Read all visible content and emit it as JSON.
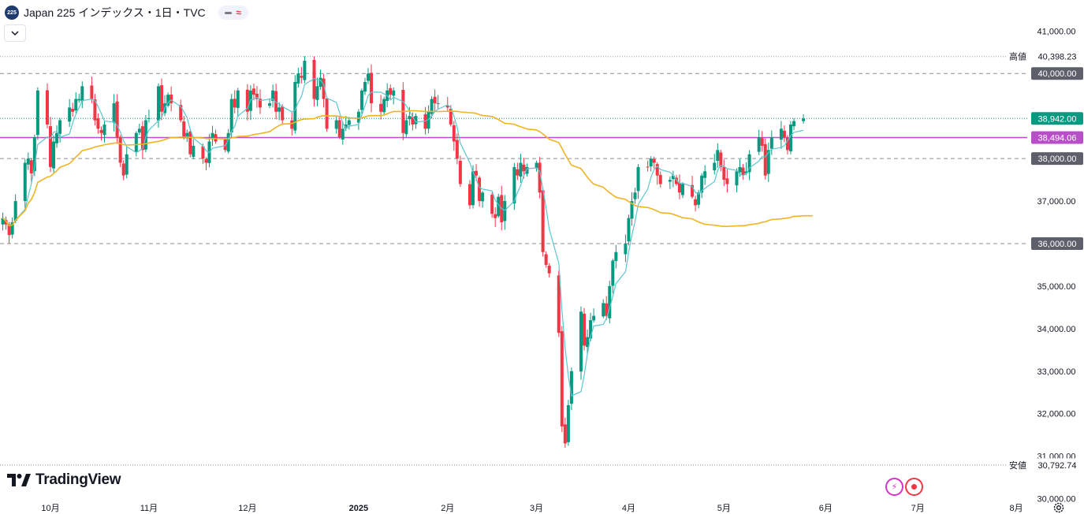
{
  "header": {
    "symbol_badge": "225",
    "title": "Japan 225 インデックス・1日・TVC"
  },
  "branding": {
    "logo_text": "TradingView"
  },
  "icons": [
    "collapse-chevron-icon",
    "indicator-pill-icon",
    "lightning-alert-icon",
    "record-icon",
    "gear-icon",
    "tradingview-logo-icon"
  ],
  "colors": {
    "up": "#089981",
    "down": "#f23645",
    "ma_short": "#5bc6cf",
    "ma_long": "#f0b323",
    "hline": "#b84fc9",
    "tag_dark": "#5d606b",
    "tag_last": "#089981"
  },
  "chart_data": {
    "type": "candlestick",
    "title": "Japan 225 インデックス・1日・TVC",
    "y_range": [
      29900,
      41450
    ],
    "y_ticks": [
      {
        "value": 41000,
        "label": "41,000.00"
      },
      {
        "value": 37000,
        "label": "37,000.00"
      },
      {
        "value": 35000,
        "label": "35,000.00"
      },
      {
        "value": 34000,
        "label": "34,000.00"
      },
      {
        "value": 33000,
        "label": "33,000.00"
      },
      {
        "value": 32000,
        "label": "32,000.00"
      },
      {
        "value": 31000,
        "label": "31,000.00"
      },
      {
        "value": 30000,
        "label": "30,000.00"
      }
    ],
    "x_labels": [
      {
        "label": "10月",
        "date": "2024-10-01",
        "bold": false
      },
      {
        "label": "11月",
        "date": "2024-11-01",
        "bold": false
      },
      {
        "label": "12月",
        "date": "2024-12-02",
        "bold": false
      },
      {
        "label": "2025",
        "date": "2025-01-06",
        "bold": true
      },
      {
        "label": "2月",
        "date": "2025-02-03",
        "bold": false
      },
      {
        "label": "3月",
        "date": "2025-03-03",
        "bold": false
      },
      {
        "label": "4月",
        "date": "2025-04-01",
        "bold": false
      },
      {
        "label": "5月",
        "date": "2025-05-01",
        "bold": false
      },
      {
        "label": "6月",
        "date": "2025-06-02",
        "bold": false
      },
      {
        "label": "7月",
        "date": "2025-07-01",
        "bold": false
      },
      {
        "label": "8月",
        "date": "2025-08-01",
        "bold": false
      }
    ],
    "price_lines": [
      {
        "value": 40000,
        "label": "40,000.00",
        "style": "dashed",
        "tag": "dark"
      },
      {
        "value": 38000,
        "label": "38,000.00",
        "style": "dashed",
        "tag": "dark"
      },
      {
        "value": 36000,
        "label": "36,000.00",
        "style": "dashed",
        "tag": "dark"
      },
      {
        "value": 38494.06,
        "label": "38,494.06",
        "style": "solid",
        "tag": "purple"
      },
      {
        "value": 38942.0,
        "label": "38,942.00",
        "style": "dotted",
        "tag": "last"
      },
      {
        "value": 40398.23,
        "label": "40,398.23",
        "style": "dotted",
        "tag": "light",
        "caption": "高値"
      },
      {
        "value": 30792.74,
        "label": "30,792.74",
        "style": "dotted",
        "tag": "light",
        "caption": "安値"
      }
    ],
    "series": [
      {
        "name": "Japan 225",
        "type": "candlestick",
        "x_start": "2024-09-16",
        "closes": [
          36600,
          36450,
          36200,
          36500,
          37000,
          37900,
          38000,
          37650,
          38500,
          39600,
          38800,
          37800,
          38400,
          38600,
          38900,
          39200,
          39100,
          39400,
          39400,
          39700,
          39400,
          38900,
          38700,
          38600,
          38800,
          39300,
          38500,
          37900,
          37600,
          38100,
          38600,
          38700,
          38200,
          38900,
          38950,
          39700,
          39100,
          39300,
          39500,
          39300,
          38900,
          38500,
          38600,
          38100,
          38300,
          38000,
          37900,
          38400,
          38600,
          38400,
          38200,
          38600,
          39400,
          39200,
          39600,
          39100,
          39600,
          39500,
          39400,
          39200,
          39300,
          39600,
          39100,
          39200,
          38900,
          38700,
          39800,
          40000,
          39900,
          40300,
          39400,
          39700,
          39900,
          39400,
          38700,
          38900,
          38500,
          38700,
          38800,
          38900,
          39100,
          39600,
          39800,
          40000,
          39300,
          39100,
          39400,
          39600,
          39500,
          39600,
          38600,
          38900,
          39000,
          38800,
          39000,
          38700,
          39100,
          39400,
          39300,
          39300,
          39200,
          38800,
          38400,
          38000,
          37400,
          36900,
          37700,
          37600,
          37000,
          37200,
          36700,
          36600,
          37100,
          36500,
          37000,
          37800,
          37600,
          37900,
          37700,
          37800,
          37900,
          37200,
          35800,
          35500,
          35300,
          33900,
          31700,
          31300,
          32200,
          33000,
          34400,
          33600,
          33800,
          34200,
          34300,
          34600,
          34300,
          35000,
          35600,
          35800,
          36000,
          36600,
          37000,
          37200,
          37800,
          37800,
          38000,
          37900,
          37600,
          37400,
          37500,
          37600,
          37400,
          37200,
          37400,
          37100,
          36900,
          37200,
          37600,
          37700,
          37900,
          38200,
          37800,
          37500,
          37400,
          37700,
          37800,
          37600,
          37700,
          38100,
          38500,
          38300,
          37600,
          38200,
          38500,
          38700,
          38500,
          38200,
          38800,
          38880,
          38942
        ]
      }
    ],
    "moving_averages": [
      {
        "name": "MA short",
        "color": "#5bc6cf"
      },
      {
        "name": "MA long",
        "color": "#f0b323"
      }
    ]
  }
}
